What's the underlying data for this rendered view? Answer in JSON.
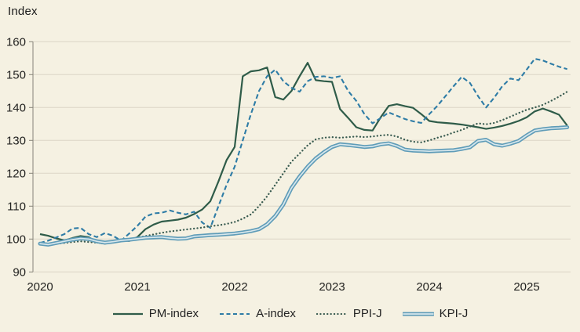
{
  "chart_data": {
    "type": "line",
    "title": "Index",
    "x_start_year": 2020,
    "x_step_months": 1,
    "xticks": [
      2020,
      2021,
      2022,
      2023,
      2024,
      2025
    ],
    "yticks": [
      90,
      100,
      110,
      120,
      130,
      140,
      150,
      160
    ],
    "ylim": [
      90,
      160
    ],
    "grid": "horizontal",
    "legend_position": "bottom",
    "colors": {
      "background": "#f5f1e2",
      "gridline": "#dbd6c6",
      "axis": "#87847a",
      "text": "#222220"
    },
    "series": [
      {
        "name": "PM-index",
        "style": "solid",
        "color": "#2f5c49",
        "values": [
          101.5,
          101.0,
          100.2,
          99.6,
          100.3,
          100.9,
          100.6,
          99.0,
          98.6,
          99.3,
          99.6,
          99.4,
          100.6,
          103.0,
          104.4,
          105.3,
          105.6,
          105.9,
          106.5,
          107.6,
          109.0,
          111.5,
          117.5,
          124.0,
          128.0,
          149.5,
          151.0,
          151.3,
          152.2,
          143.2,
          142.4,
          145.0,
          149.5,
          153.6,
          148.3,
          148.0,
          147.8,
          139.5,
          136.8,
          134.0,
          133.2,
          133.0,
          137.0,
          140.5,
          141.0,
          140.4,
          139.9,
          138.0,
          135.9,
          135.5,
          135.3,
          135.1,
          134.8,
          134.4,
          134.0,
          133.5,
          133.9,
          134.4,
          135.1,
          135.9,
          137.0,
          138.8,
          139.7,
          138.8,
          137.8,
          134.5
        ]
      },
      {
        "name": "A-index",
        "style": "dashed",
        "color": "#2e7ca6",
        "values": [
          98.8,
          99.5,
          100.5,
          101.5,
          103.2,
          103.4,
          101.5,
          100.6,
          101.8,
          101.0,
          99.5,
          101.7,
          104.0,
          106.8,
          107.8,
          108.0,
          108.7,
          108.0,
          107.5,
          108.3,
          105.0,
          103.4,
          110.0,
          116.5,
          122.0,
          130.0,
          138.0,
          145.0,
          149.5,
          151.5,
          148.0,
          146.0,
          144.8,
          148.0,
          149.3,
          149.5,
          149.0,
          149.5,
          145.0,
          142.0,
          138.0,
          135.2,
          136.8,
          138.5,
          137.5,
          136.5,
          135.8,
          135.3,
          138.0,
          140.5,
          143.5,
          146.5,
          149.3,
          147.5,
          143.5,
          140.0,
          143.0,
          146.5,
          148.8,
          148.3,
          151.5,
          154.8,
          154.3,
          153.3,
          152.4,
          151.7
        ]
      },
      {
        "name": "PPI-J",
        "style": "dotted",
        "color": "#3a5c51",
        "values": [
          98.4,
          98.2,
          98.6,
          98.8,
          99.1,
          99.3,
          99.1,
          98.9,
          99.1,
          99.4,
          99.6,
          99.8,
          100.4,
          100.9,
          101.4,
          101.9,
          102.3,
          102.6,
          102.9,
          103.2,
          103.5,
          103.9,
          104.2,
          104.6,
          105.2,
          106.2,
          107.5,
          110.0,
          113.0,
          116.5,
          120.0,
          123.5,
          126.0,
          128.5,
          130.3,
          130.8,
          131.0,
          130.8,
          131.0,
          131.2,
          131.0,
          131.2,
          131.5,
          131.7,
          131.2,
          130.2,
          129.6,
          129.4,
          130.0,
          130.8,
          131.5,
          132.4,
          133.2,
          134.2,
          135.2,
          134.9,
          135.3,
          136.2,
          137.2,
          138.3,
          139.3,
          140.0,
          140.8,
          142.0,
          143.3,
          144.8
        ]
      },
      {
        "name": "KPI-J",
        "style": "thick-double",
        "color": "#5f9cb8",
        "inner_color": "#d7e7ec",
        "values": [
          98.6,
          98.3,
          98.8,
          99.3,
          99.8,
          100.2,
          100.0,
          99.3,
          98.9,
          99.2,
          99.6,
          99.8,
          100.1,
          100.4,
          100.5,
          100.6,
          100.3,
          100.1,
          100.2,
          100.8,
          101.0,
          101.2,
          101.3,
          101.5,
          101.7,
          102.0,
          102.4,
          103.0,
          104.5,
          107.0,
          110.5,
          115.5,
          119.0,
          122.0,
          124.5,
          126.4,
          128.0,
          128.8,
          128.6,
          128.3,
          128.0,
          128.2,
          128.8,
          129.1,
          128.3,
          127.2,
          126.9,
          126.8,
          126.7,
          126.8,
          126.9,
          127.0,
          127.4,
          127.9,
          129.8,
          130.2,
          128.8,
          128.4,
          129.0,
          129.8,
          131.5,
          133.0,
          133.4,
          133.7,
          133.8,
          134.0
        ]
      }
    ]
  }
}
